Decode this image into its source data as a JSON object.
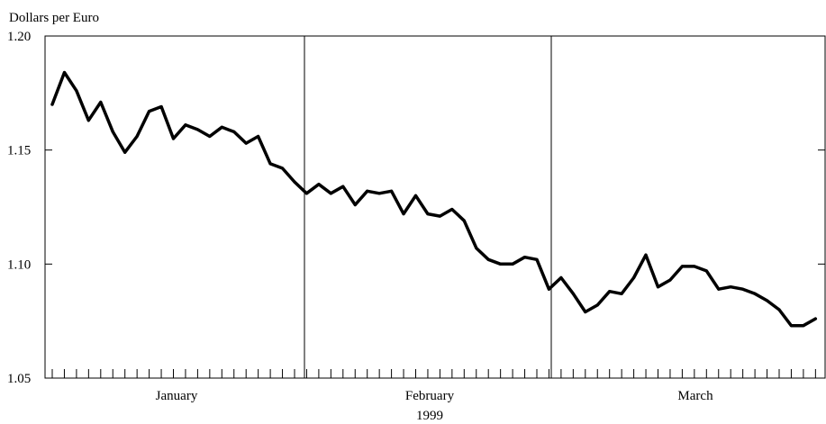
{
  "chart_data": {
    "type": "line",
    "ylabel": "Dollars per Euro",
    "xlabel": "1999",
    "ylim": [
      1.05,
      1.2
    ],
    "yticks": [
      "1.05",
      "1.10",
      "1.15",
      "1.20"
    ],
    "months": [
      "January",
      "February",
      "March"
    ],
    "grid": false,
    "series": [
      {
        "values": [
          1.17,
          1.184,
          1.176,
          1.163,
          1.171,
          1.158,
          1.149,
          1.156,
          1.167,
          1.169,
          1.155,
          1.161,
          1.159,
          1.156,
          1.16,
          1.158,
          1.153,
          1.156,
          1.144,
          1.142,
          1.136,
          1.131,
          1.135,
          1.131,
          1.134,
          1.126,
          1.132,
          1.131,
          1.132,
          1.122,
          1.13,
          1.122,
          1.121,
          1.124,
          1.119,
          1.107,
          1.102,
          1.1,
          1.1,
          1.103,
          1.102,
          1.089,
          1.094,
          1.087,
          1.079,
          1.082,
          1.088,
          1.087,
          1.094,
          1.104,
          1.09,
          1.093,
          1.099,
          1.099,
          1.097,
          1.089,
          1.09,
          1.089,
          1.087,
          1.084,
          1.08,
          1.073,
          1.073,
          1.076
        ]
      }
    ]
  }
}
